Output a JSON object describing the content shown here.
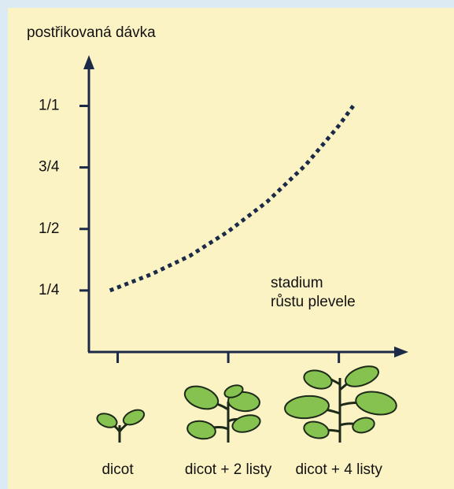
{
  "chart_data": {
    "type": "line",
    "title": "postřikovaná dávka",
    "annotation": [
      "stadium",
      "růstu plevele"
    ],
    "xticks": [
      {
        "value": 0,
        "label": "dicot"
      },
      {
        "value": 1,
        "label": "dicot + 2 listy"
      },
      {
        "value": 2,
        "label": "dicot + 4 listy"
      }
    ],
    "xlim": [
      -0.26,
      2.6
    ],
    "ylim": [
      0,
      1.2
    ],
    "yticks": [
      {
        "value": 0.25,
        "label": "1/4"
      },
      {
        "value": 0.5,
        "label": "1/2"
      },
      {
        "value": 0.75,
        "label": "3/4"
      },
      {
        "value": 1,
        "label": "1/1"
      }
    ],
    "series": [
      {
        "color": "#1b2a48",
        "x": [
          -0.07,
          0.3,
          0.65,
          1.0,
          1.35,
          1.7,
          2.0,
          2.13
        ],
        "values": [
          0.25,
          0.315,
          0.39,
          0.49,
          0.61,
          0.76,
          0.92,
          1.0
        ]
      }
    ]
  }
}
